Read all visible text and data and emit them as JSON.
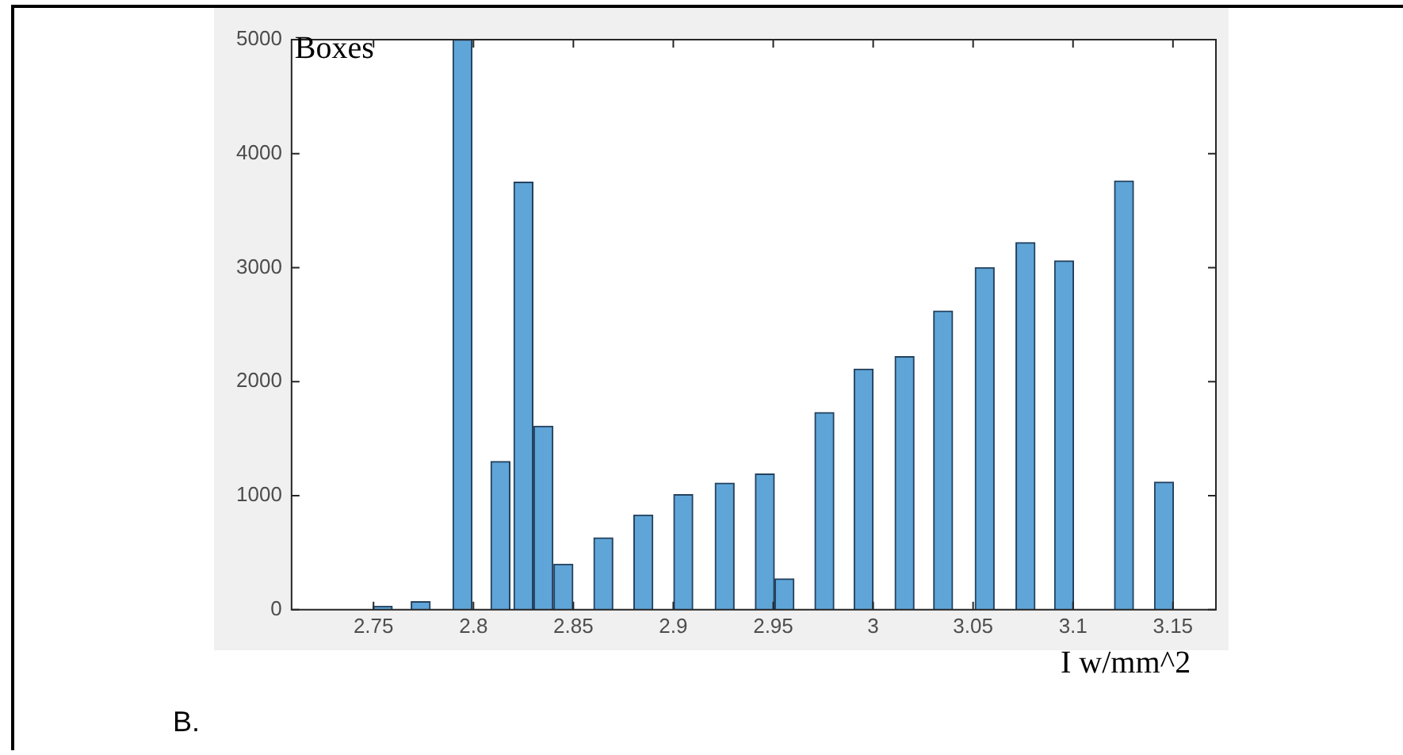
{
  "chart_data": {
    "type": "bar",
    "xlabel": "I w/mm^2",
    "ylabel": "Boxes",
    "x": [
      2.7546,
      2.7736,
      2.7945,
      2.8135,
      2.825,
      2.835,
      2.845,
      2.865,
      2.885,
      2.905,
      2.9257,
      2.9458,
      2.9556,
      2.9756,
      2.9952,
      3.0157,
      3.035,
      3.0558,
      3.0762,
      3.0955,
      3.1255,
      3.1455
    ],
    "values": [
      30,
      70,
      5000,
      1300,
      3750,
      1610,
      400,
      630,
      830,
      1010,
      1110,
      1190,
      270,
      1730,
      2110,
      2220,
      2620,
      3000,
      3220,
      3060,
      3760,
      1120
    ],
    "color": "#5fa5d8",
    "xlim": [
      2.709,
      3.1715
    ],
    "xticks": [
      2.75,
      2.8,
      2.85,
      2.9,
      2.95,
      3,
      3.05,
      3.1,
      3.15
    ],
    "ylim": [
      0,
      5000
    ],
    "yticks": [
      0,
      1000,
      2000,
      3000,
      4000,
      5000
    ],
    "annotations": [
      "B."
    ]
  }
}
